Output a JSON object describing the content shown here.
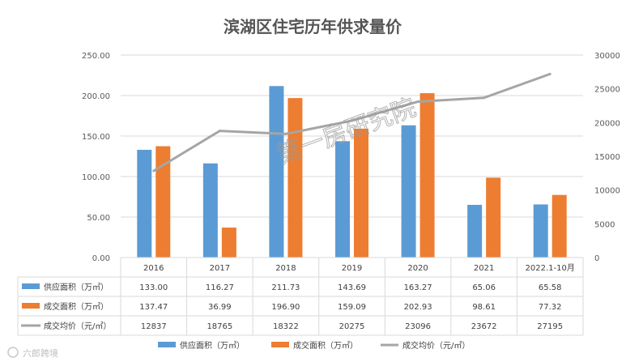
{
  "chart_data": {
    "type": "bar",
    "title": "滨湖区住宅历年供求量价",
    "categories": [
      "2016",
      "2017",
      "2018",
      "2019",
      "2020",
      "2021",
      "2022.1-10月"
    ],
    "series": [
      {
        "name": "供应面积（万㎡）",
        "type": "bar",
        "axis": "left",
        "color": "#5B9BD5",
        "values": [
          133.0,
          116.27,
          211.73,
          143.69,
          163.27,
          65.06,
          65.58
        ],
        "labels": [
          "133.00",
          "116.27",
          "211.73",
          "143.69",
          "163.27",
          "65.06",
          "65.58"
        ]
      },
      {
        "name": "成交面积（万㎡）",
        "type": "bar",
        "axis": "left",
        "color": "#ED7D31",
        "values": [
          137.47,
          36.99,
          196.9,
          159.09,
          202.93,
          98.61,
          77.32
        ],
        "labels": [
          "137.47",
          "36.99",
          "196.90",
          "159.09",
          "202.93",
          "98.61",
          "77.32"
        ]
      },
      {
        "name": "成交均价（元/㎡）",
        "type": "line",
        "axis": "right",
        "color": "#A5A5A5",
        "values": [
          12837,
          18765,
          18322,
          20275,
          23096,
          23672,
          27195
        ],
        "labels": [
          "12837",
          "18765",
          "18322",
          "20275",
          "23096",
          "23672",
          "27195"
        ]
      }
    ],
    "y_left": {
      "min": 0,
      "max": 250,
      "ticks": [
        "0.00",
        "50.00",
        "100.00",
        "150.00",
        "200.00",
        "250.00"
      ]
    },
    "y_right": {
      "min": 0,
      "max": 30000,
      "ticks": [
        "0",
        "5000",
        "10000",
        "15000",
        "20000",
        "25000",
        "30000"
      ]
    },
    "grid": true,
    "legend": "bottom",
    "data_table": true
  },
  "watermark": "第一房研究院",
  "source": "六郎跨境"
}
